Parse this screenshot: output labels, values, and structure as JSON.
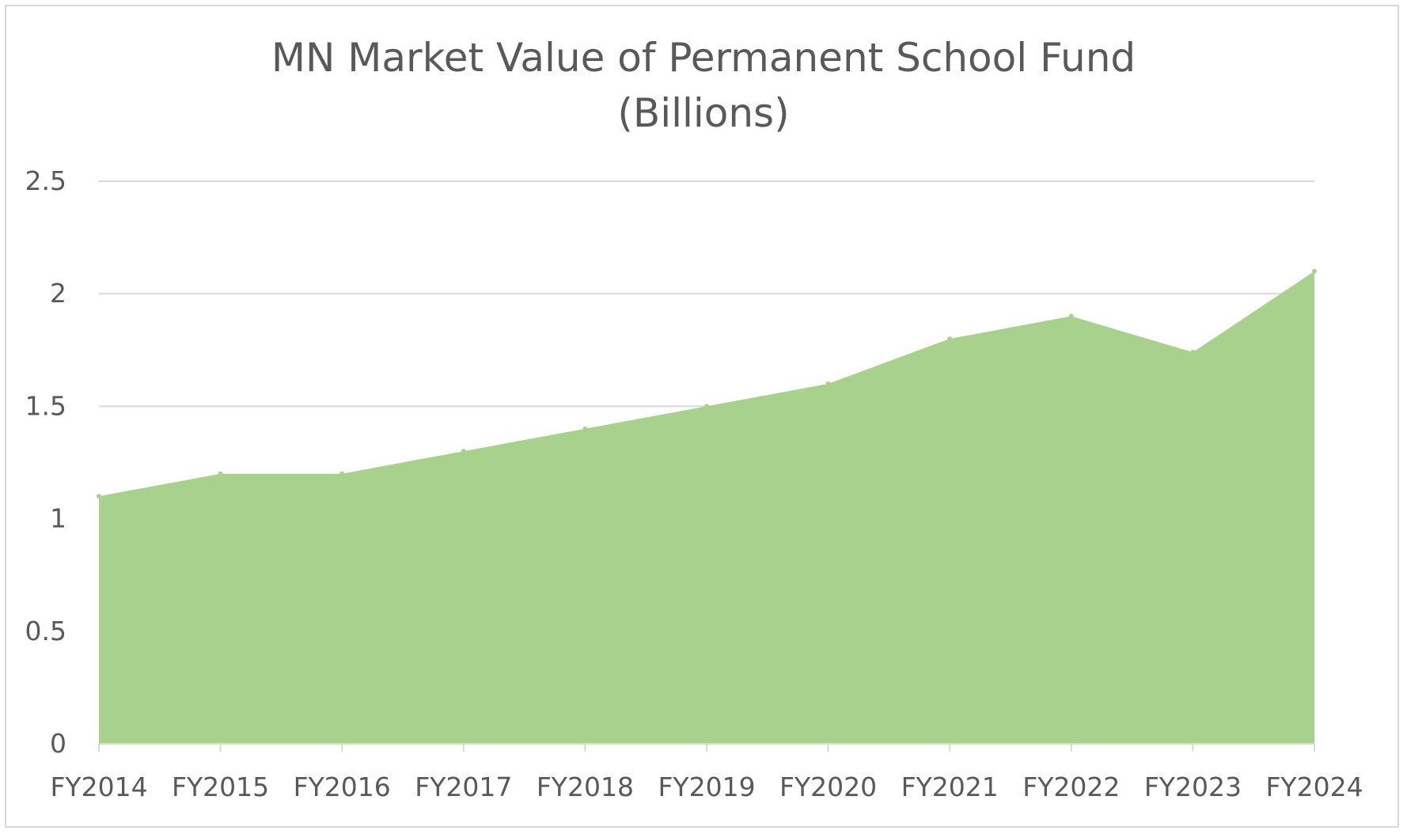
{
  "chart_data": {
    "type": "area",
    "title": "MN Market Value of Permanent School Fund",
    "subtitle": "(Billions)",
    "categories": [
      "FY2014",
      "FY2015",
      "FY2016",
      "FY2017",
      "FY2018",
      "FY2019",
      "FY2020",
      "FY2021",
      "FY2022",
      "FY2023",
      "FY2024"
    ],
    "series": [
      {
        "values": [
          1.1,
          1.2,
          1.2,
          1.3,
          1.4,
          1.5,
          1.6,
          1.8,
          1.9,
          1.74,
          2.1
        ],
        "color": "#a9d18e"
      }
    ],
    "yticks": [
      "0",
      "0.5",
      "1",
      "1.5",
      "2",
      "2.5"
    ],
    "ylim": [
      0,
      2.5
    ],
    "xlabel": "",
    "ylabel": "",
    "grid": true,
    "legend": "none",
    "gridline_color": "#d9d9d9",
    "axis_color": "#d9d9d9"
  }
}
